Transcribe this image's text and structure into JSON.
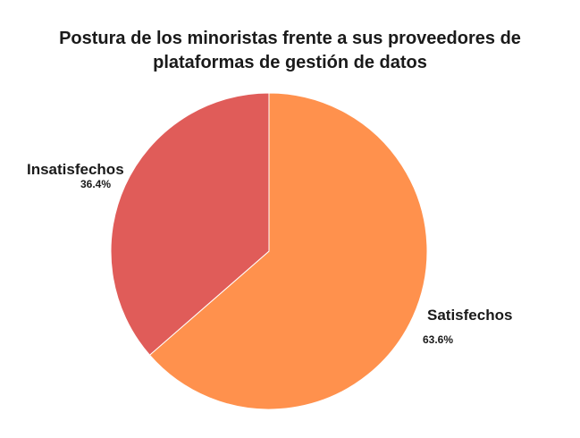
{
  "chart_data": {
    "type": "pie",
    "title": "Postura de los minoristas frente a sus proveedores de\nplataformas de gestión de datos",
    "slices": [
      {
        "label": "Satisfechos",
        "value": 63.6,
        "value_label": "63.6%",
        "color": "#ff914d"
      },
      {
        "label": "Insatisfechos",
        "value": 36.4,
        "value_label": "36.4%",
        "color": "#e05c59"
      }
    ],
    "start_angle": "12 o'clock",
    "direction": "clockwise",
    "legend": "none"
  }
}
